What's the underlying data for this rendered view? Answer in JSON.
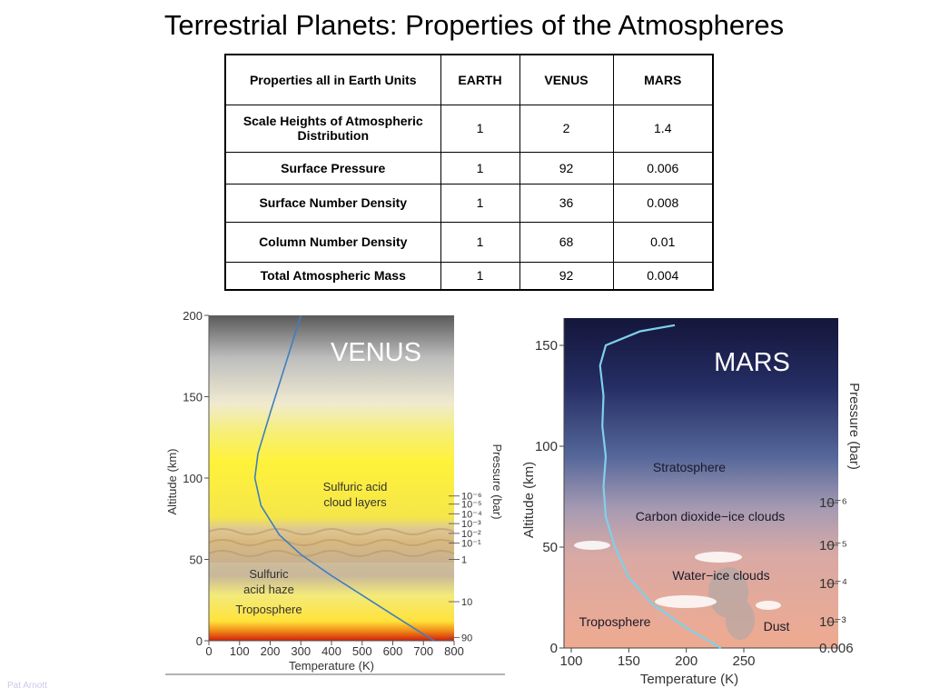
{
  "title": "Terrestrial Planets: Properties of the Atmospheres",
  "table": {
    "headers": [
      "Properties all in Earth Units",
      "EARTH",
      "VENUS",
      "MARS"
    ],
    "rows": [
      {
        "label": "Scale Heights of Atmospheric Distribution",
        "earth": "1",
        "venus": "2",
        "mars": "1.4"
      },
      {
        "label": "Surface Pressure",
        "earth": "1",
        "venus": "92",
        "mars": "0.006"
      },
      {
        "label": "Surface Number Density",
        "earth": "1",
        "venus": "36",
        "mars": "0.008"
      },
      {
        "label": "Column Number Density",
        "earth": "1",
        "venus": "68",
        "mars": "0.01"
      },
      {
        "label": "Total Atmospheric Mass",
        "earth": "1",
        "venus": "92",
        "mars": "0.004"
      }
    ]
  },
  "venus_figure": {
    "planet_label": "VENUS",
    "xlabel": "Temperature (K)",
    "ylabel": "Altitude (km)",
    "right_label": "Pressure (bar)",
    "x_ticks": [
      "0",
      "100",
      "200",
      "300",
      "400",
      "500",
      "600",
      "700",
      "800"
    ],
    "y_ticks": [
      "0",
      "50",
      "100",
      "150",
      "200"
    ],
    "pressure_ticks": [
      "10⁻⁶",
      "10⁻⁵",
      "10⁻⁴",
      "10⁻³",
      "10⁻²",
      "10⁻¹",
      "1",
      "10",
      "90"
    ],
    "layer_labels": {
      "clouds": [
        "Sulfuric acid",
        "cloud layers"
      ],
      "haze": [
        "Sulfuric",
        "acid haze"
      ],
      "troposphere": "Troposphere"
    },
    "profile": {
      "x": [
        735,
        700,
        600,
        500,
        400,
        300,
        230,
        170,
        150,
        160,
        200,
        250,
        300
      ],
      "y": [
        0,
        4,
        16,
        28,
        40,
        53,
        65,
        83,
        100,
        115,
        140,
        170,
        200
      ]
    }
  },
  "mars_figure": {
    "planet_label": "MARS",
    "xlabel": "Temperature (K)",
    "ylabel": "Altitude (km)",
    "right_label": "Pressure (bar)",
    "x_ticks": [
      "100",
      "150",
      "200",
      "250"
    ],
    "y_ticks": [
      "0",
      "50",
      "100",
      "150"
    ],
    "pressure_ticks": [
      "10⁻⁶",
      "10⁻⁵",
      "10⁻⁴",
      "10⁻³",
      "0.006"
    ],
    "layer_labels": {
      "stratosphere": "Stratosphere",
      "co2_clouds": "Carbon dioxide−ice clouds",
      "water_clouds": "Water−ice clouds",
      "troposphere": "Troposphere",
      "dust": "Dust"
    },
    "profile": {
      "x": [
        230,
        200,
        170,
        150,
        138,
        130,
        128,
        130,
        127,
        128,
        125,
        130,
        160,
        190
      ],
      "y": [
        0,
        10,
        22,
        35,
        50,
        65,
        80,
        95,
        110,
        125,
        140,
        150,
        157,
        160
      ]
    }
  },
  "credit": "Pat Arnott"
}
